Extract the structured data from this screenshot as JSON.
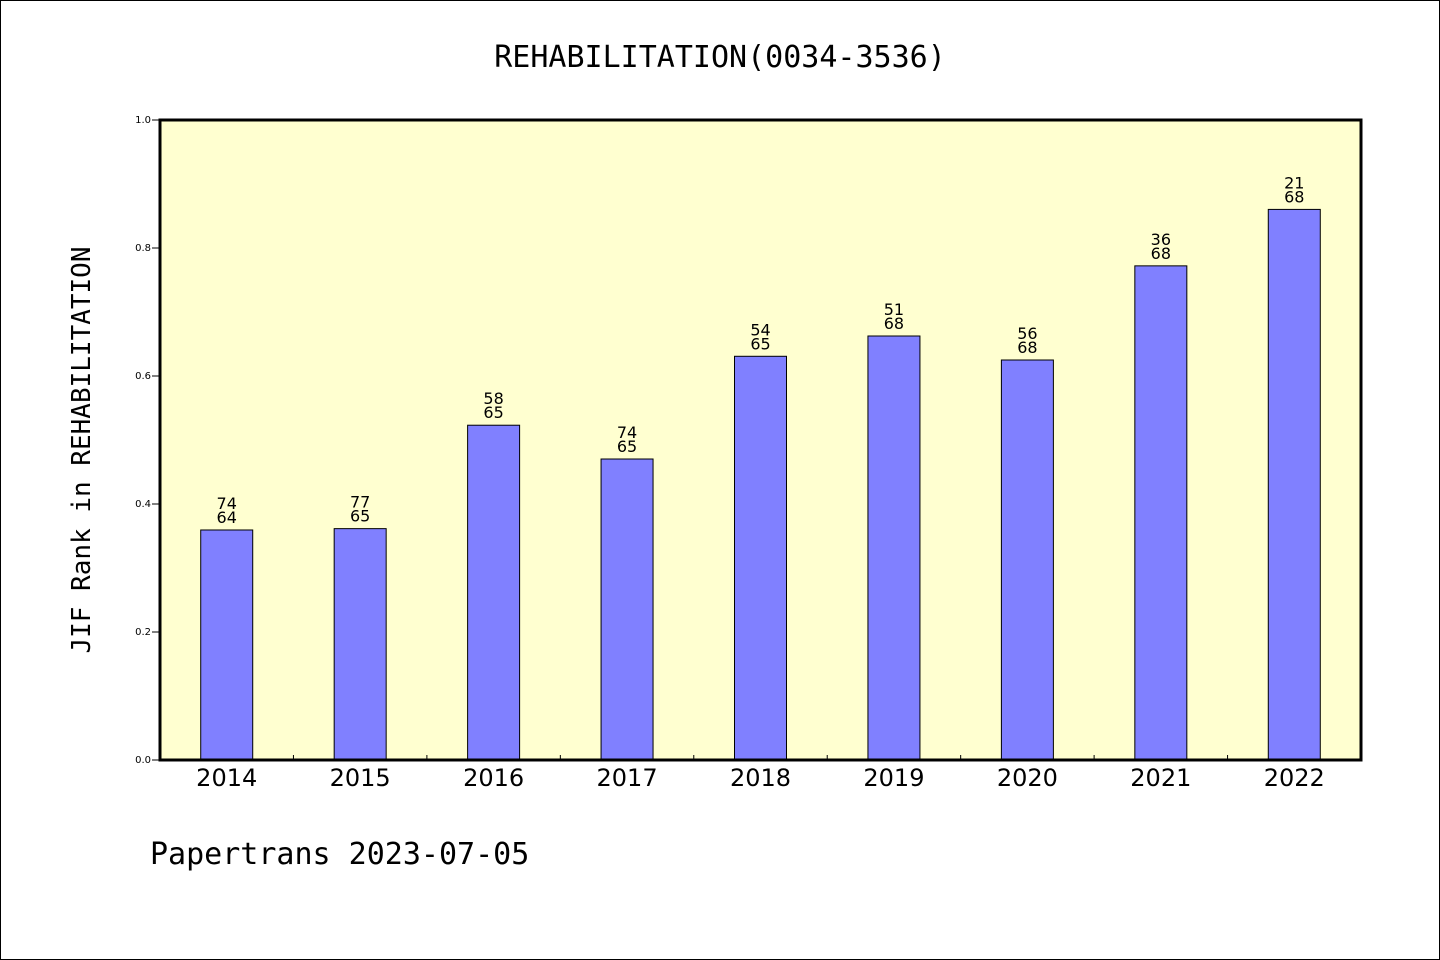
{
  "chart_data": {
    "type": "bar",
    "title": "REHABILITATION(0034-3536)",
    "ylabel": "JIF Rank in REHABILITATION",
    "xlabel": "",
    "ylim": [
      0,
      1.0
    ],
    "yticks": [
      "0.0",
      "0.2",
      "0.4",
      "0.6",
      "0.8",
      "1.0"
    ],
    "categories": [
      "2014",
      "2015",
      "2016",
      "2017",
      "2018",
      "2019",
      "2020",
      "2021",
      "2022"
    ],
    "values": [
      0.3594,
      0.3615,
      0.5231,
      0.4703,
      0.6308,
      0.6625,
      0.625,
      0.7721,
      0.8603
    ],
    "rank_labels": [
      "74",
      "77",
      "58",
      "74",
      "54",
      "51",
      "56",
      "36",
      "21"
    ],
    "total_labels": [
      "64",
      "65",
      "65",
      "65",
      "65",
      "68",
      "68",
      "68",
      "68"
    ],
    "grid": false,
    "legend": "none",
    "colors": {
      "bar": "#8080ff",
      "plot_background": "#ffffd0",
      "axis": "#000000"
    }
  },
  "footer": {
    "text": "Papertrans 2023-07-05"
  }
}
